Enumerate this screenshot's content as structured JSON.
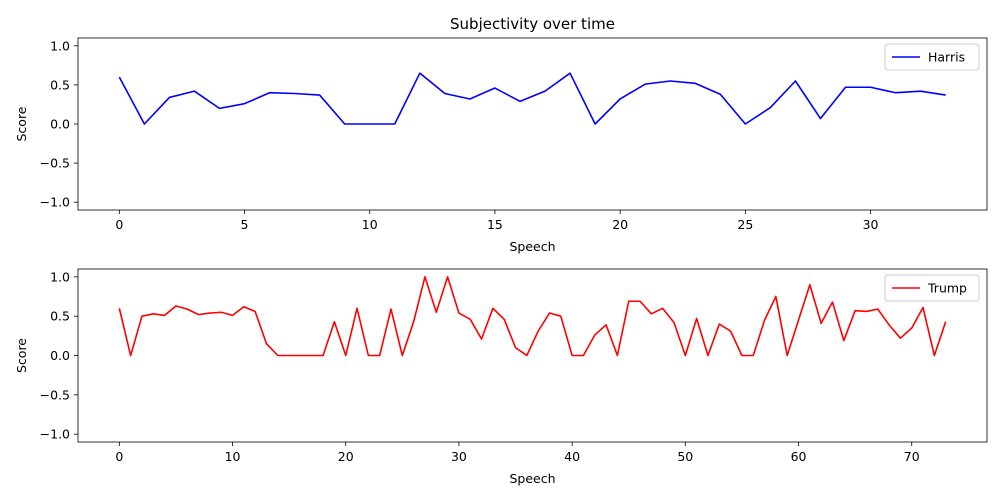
{
  "chart_data": [
    {
      "type": "line",
      "title": "Subjectivity over time",
      "xlabel": "Speech",
      "ylabel": "Score",
      "xlim": [
        -1.65,
        34.65
      ],
      "ylim": [
        -1.1,
        1.1
      ],
      "xticks": [
        0,
        5,
        10,
        15,
        20,
        25,
        30
      ],
      "yticks": [
        -1.0,
        -0.5,
        0.0,
        0.5,
        1.0
      ],
      "legend_position": "top-right",
      "grid": false,
      "series": [
        {
          "name": "Harris",
          "color": "#0000ff",
          "x": [
            0,
            1,
            2,
            3,
            4,
            5,
            6,
            7,
            8,
            9,
            10,
            11,
            12,
            13,
            14,
            15,
            16,
            17,
            18,
            19,
            20,
            21,
            22,
            23,
            24,
            25,
            26,
            27,
            28,
            29,
            30,
            31,
            32,
            33
          ],
          "values": [
            0.6,
            0.0,
            0.34,
            0.42,
            0.2,
            0.26,
            0.4,
            0.39,
            0.37,
            0.0,
            0.0,
            0.0,
            0.65,
            0.39,
            0.32,
            0.46,
            0.29,
            0.42,
            0.65,
            0.0,
            0.32,
            0.51,
            0.55,
            0.52,
            0.38,
            0.0,
            0.21,
            0.55,
            0.07,
            0.47,
            0.47,
            0.4,
            0.42,
            0.37
          ]
        }
      ]
    },
    {
      "type": "line",
      "title": "",
      "xlabel": "Speech",
      "ylabel": "Score",
      "xlim": [
        -3.65,
        76.65
      ],
      "ylim": [
        -1.1,
        1.1
      ],
      "xticks": [
        0,
        10,
        20,
        30,
        40,
        50,
        60,
        70
      ],
      "yticks": [
        -1.0,
        -0.5,
        0.0,
        0.5,
        1.0
      ],
      "legend_position": "top-right",
      "grid": false,
      "series": [
        {
          "name": "Trump",
          "color": "#ff0000",
          "x": [
            0,
            1,
            2,
            3,
            4,
            5,
            6,
            7,
            8,
            9,
            10,
            11,
            12,
            13,
            14,
            15,
            16,
            17,
            18,
            19,
            20,
            21,
            22,
            23,
            24,
            25,
            26,
            27,
            28,
            29,
            30,
            31,
            32,
            33,
            34,
            35,
            36,
            37,
            38,
            39,
            40,
            41,
            42,
            43,
            44,
            45,
            46,
            47,
            48,
            49,
            50,
            51,
            52,
            53,
            54,
            55,
            56,
            57,
            58,
            59,
            60,
            61,
            62,
            63,
            64,
            65,
            66,
            67,
            68,
            69,
            70,
            71,
            72,
            73
          ],
          "values": [
            0.6,
            0.0,
            0.5,
            0.53,
            0.51,
            0.63,
            0.59,
            0.52,
            0.54,
            0.55,
            0.51,
            0.62,
            0.56,
            0.15,
            0.0,
            0.0,
            0.0,
            0.0,
            0.0,
            0.43,
            0.0,
            0.6,
            0.0,
            0.0,
            0.59,
            0.0,
            0.43,
            1.0,
            0.55,
            1.0,
            0.54,
            0.46,
            0.21,
            0.6,
            0.46,
            0.1,
            0.0,
            0.31,
            0.54,
            0.5,
            0.0,
            0.0,
            0.26,
            0.39,
            0.0,
            0.69,
            0.69,
            0.53,
            0.6,
            0.42,
            0.0,
            0.47,
            0.0,
            0.4,
            0.31,
            0.0,
            0.0,
            0.45,
            0.75,
            0.0,
            0.45,
            0.9,
            0.41,
            0.68,
            0.19,
            0.57,
            0.56,
            0.59,
            0.39,
            0.22,
            0.35,
            0.61,
            0.0,
            0.43
          ]
        }
      ]
    }
  ]
}
